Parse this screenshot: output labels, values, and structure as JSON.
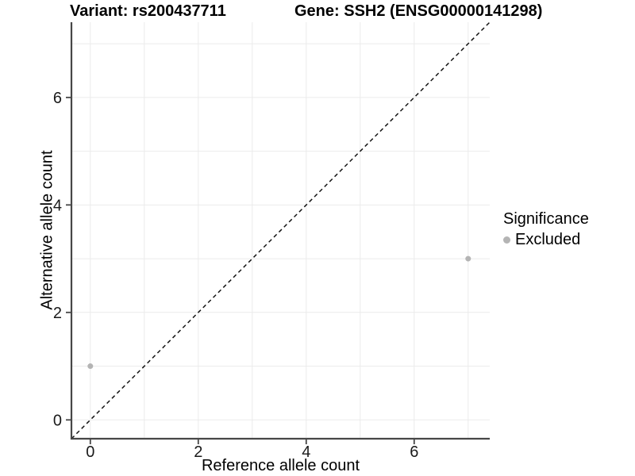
{
  "title_left": "Variant: rs200437711",
  "title_right": "Gene: SSH2 (ENSG00000141298)",
  "x_axis": {
    "label": "Reference allele count",
    "ticks": [
      0,
      2,
      4,
      6
    ]
  },
  "y_axis": {
    "label": "Alternative allele count",
    "ticks": [
      0,
      2,
      4,
      6
    ]
  },
  "legend": {
    "title": "Significance",
    "items": [
      {
        "label": "Excluded",
        "color": "#b4b4b4"
      }
    ]
  },
  "chart_data": {
    "type": "scatter",
    "title": "Variant: rs200437711 / Gene: SSH2 (ENSG00000141298)",
    "xlabel": "Reference allele count",
    "ylabel": "Alternative allele count",
    "xlim": [
      -0.35,
      7.4
    ],
    "ylim": [
      -0.35,
      7.4
    ],
    "x_ticks": [
      0,
      2,
      4,
      6
    ],
    "y_ticks": [
      0,
      2,
      4,
      6
    ],
    "gridlines_at": [
      0,
      1,
      2,
      3,
      4,
      5,
      6,
      7
    ],
    "grid": true,
    "legend_position": "right",
    "legend_title": "Significance",
    "series": [
      {
        "name": "Excluded",
        "color": "#b4b4b4",
        "points": [
          [
            0,
            1
          ],
          [
            7,
            3
          ]
        ]
      }
    ],
    "reference_line": {
      "kind": "identity",
      "style": "dashed",
      "color": "#141414"
    }
  },
  "style": {
    "background": "#ffffff",
    "grid_color": "#ebebeb",
    "axis_color": "#474747",
    "tick_text_color": "#1a1a1a",
    "point_color": "#b4b4b4"
  }
}
